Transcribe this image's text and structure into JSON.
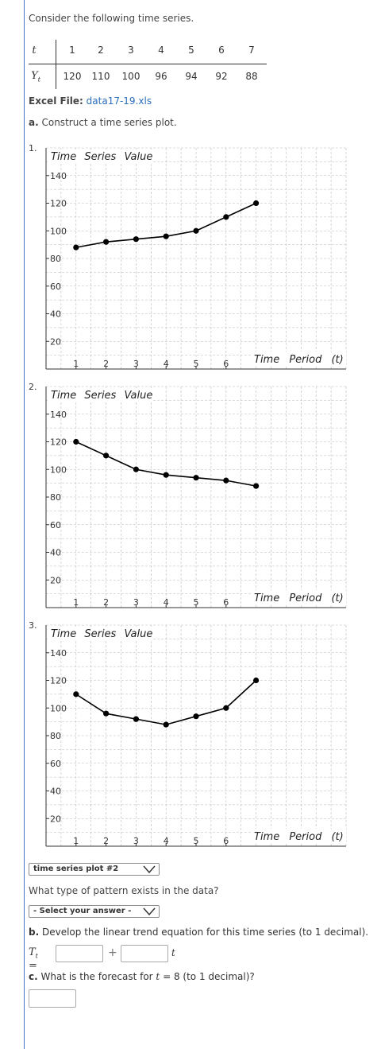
{
  "intro": "Consider the following time series.",
  "table": {
    "t_label": "t",
    "y_label": "Y",
    "y_sub": "t",
    "t_values": [
      "1",
      "2",
      "3",
      "4",
      "5",
      "6",
      "7"
    ],
    "y_values": [
      "120",
      "110",
      "100",
      "96",
      "94",
      "92",
      "88"
    ]
  },
  "excel": {
    "label": "Excel File:",
    "file": "data17-19.xls"
  },
  "part_a": {
    "letter": "a.",
    "text": "Construct a time series plot."
  },
  "chart_data": [
    {
      "type": "line",
      "number": "1.",
      "title": "Time Series Value",
      "xlabel": "Time Period (t)",
      "x": [
        1,
        2,
        3,
        4,
        5,
        6,
        7
      ],
      "y": [
        88,
        92,
        94,
        96,
        100,
        110,
        120
      ],
      "xticks": [
        "1",
        "2",
        "3",
        "4",
        "5",
        "6"
      ],
      "yticks": [
        "20",
        "40",
        "60",
        "80",
        "100",
        "120",
        "140"
      ],
      "xlim": [
        0,
        10
      ],
      "ylim": [
        0,
        160
      ],
      "grid": true
    },
    {
      "type": "line",
      "number": "2.",
      "title": "Time Series Value",
      "xlabel": "Time Period (t)",
      "x": [
        1,
        2,
        3,
        4,
        5,
        6,
        7
      ],
      "y": [
        120,
        110,
        100,
        96,
        94,
        92,
        88
      ],
      "xticks": [
        "1",
        "2",
        "3",
        "4",
        "5",
        "6"
      ],
      "yticks": [
        "20",
        "40",
        "60",
        "80",
        "100",
        "120",
        "140"
      ],
      "xlim": [
        0,
        10
      ],
      "ylim": [
        0,
        160
      ],
      "grid": true
    },
    {
      "type": "line",
      "number": "3.",
      "title": "Time Series Value",
      "xlabel": "Time Period (t)",
      "x": [
        1,
        2,
        3,
        4,
        5,
        6,
        7
      ],
      "y": [
        110,
        96,
        92,
        88,
        94,
        100,
        120
      ],
      "xticks": [
        "1",
        "2",
        "3",
        "4",
        "5",
        "6"
      ],
      "yticks": [
        "20",
        "40",
        "60",
        "80",
        "100",
        "120",
        "140"
      ],
      "xlim": [
        0,
        10
      ],
      "ylim": [
        0,
        160
      ],
      "grid": true
    }
  ],
  "plot_select": {
    "value": "time series plot #2"
  },
  "pattern_question": "What type of pattern exists in the data?",
  "pattern_select": {
    "value": "- Select your answer -"
  },
  "part_b": {
    "letter": "b.",
    "text": "Develop the linear trend equation for this time series (to 1 decimal)."
  },
  "trend_eq": {
    "lhs": "T",
    "lhs_sub": "t",
    "equals": "=",
    "plus": "+",
    "t_var": "t",
    "intercept_value": "",
    "slope_value": ""
  },
  "part_c": {
    "letter": "c.",
    "text_before": "What is the forecast for",
    "t_var": "t",
    "equals_val": "= 8",
    "text_after": "(to 1 decimal)?"
  },
  "forecast_value": "",
  "colors": {
    "link": "#2a6ebb",
    "rule": "#4a78c8",
    "grid": "#bbbbbb"
  }
}
